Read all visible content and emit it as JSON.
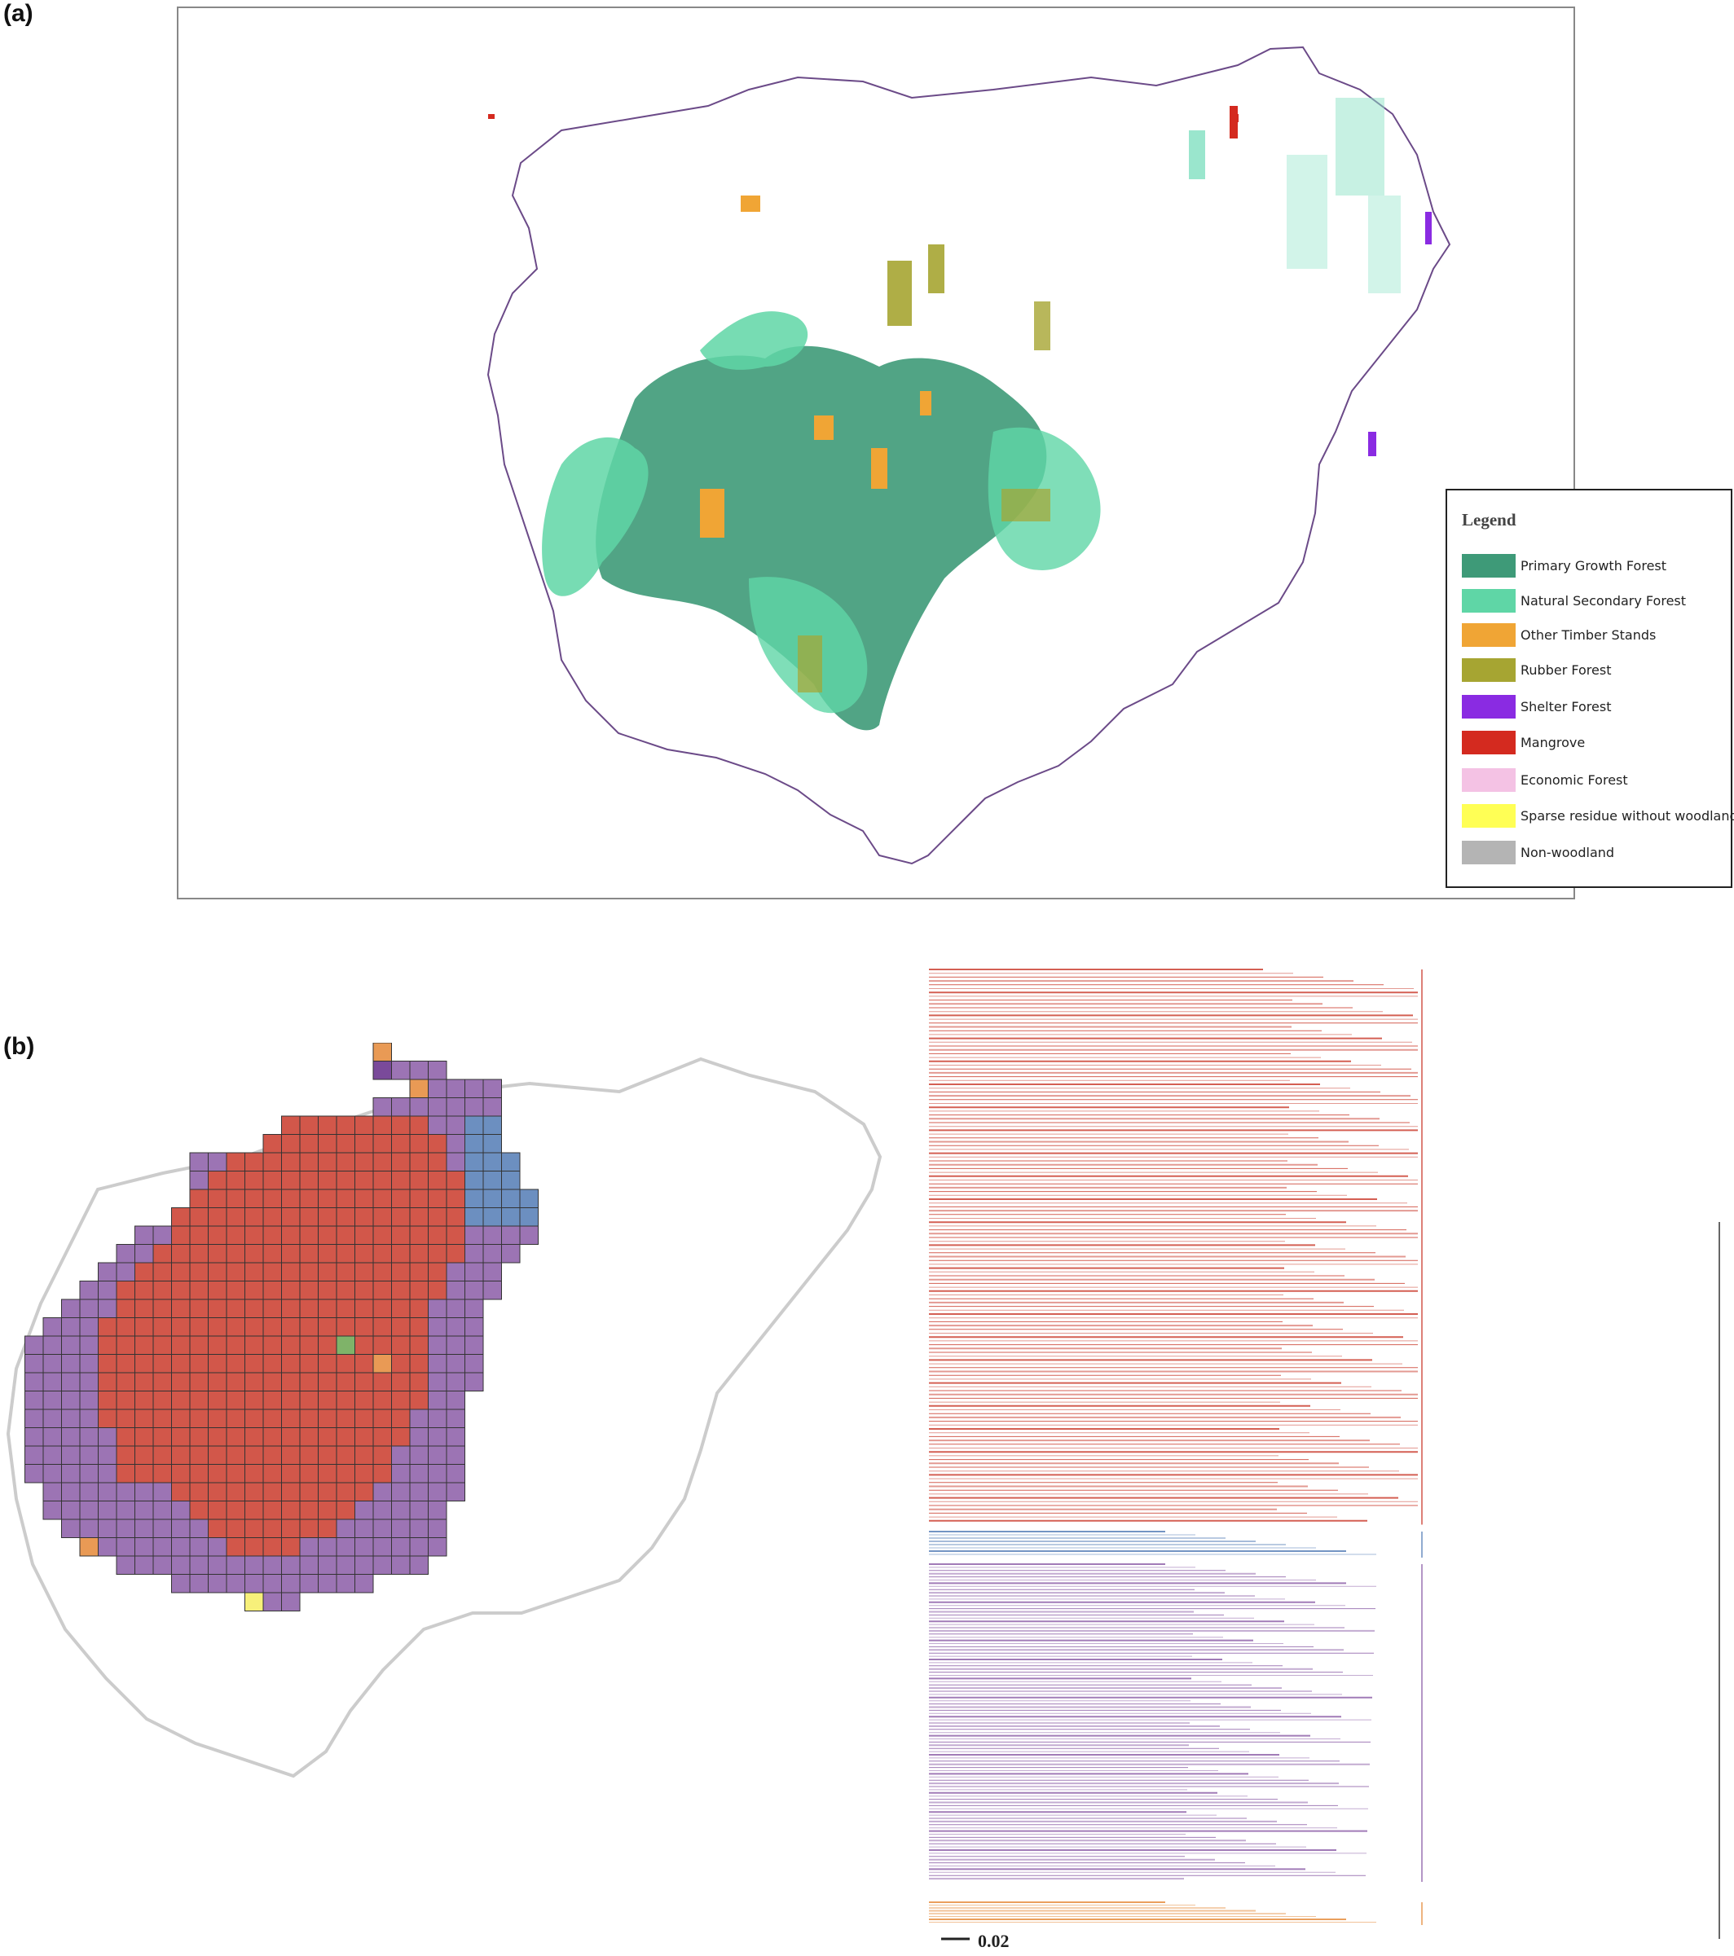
{
  "panel_a": {
    "label": "(a)",
    "legend": {
      "title": "Legend",
      "items": [
        {
          "label": "Primary Growth Forest",
          "color": "#3e9a78"
        },
        {
          "label": "Natural Secondary Forest",
          "color": "#5fd6a6"
        },
        {
          "label": "Other Timber Stands",
          "color": "#f0a535"
        },
        {
          "label": "Rubber Forest",
          "color": "#a6a532"
        },
        {
          "label": "Shelter Forest",
          "color": "#8a2be2"
        },
        {
          "label": "Mangrove",
          "color": "#d42a1f"
        },
        {
          "label": "Economic Forest",
          "color": "#f4c2e4"
        },
        {
          "label": "Sparse residue without woodland",
          "color": "#ffff55"
        },
        {
          "label": "Non-woodland",
          "color": "#b4b4b4"
        }
      ]
    }
  },
  "panel_b": {
    "label": "(b)",
    "scale_bar": "0.02",
    "cluster_colors": {
      "red": "#d2574a",
      "purple": "#9c74b4",
      "dark_purple": "#7a4a9a",
      "blue": "#6c8fc0",
      "orange": "#e99a55",
      "green": "#7fb369",
      "yellow": "#f7f07a"
    }
  }
}
